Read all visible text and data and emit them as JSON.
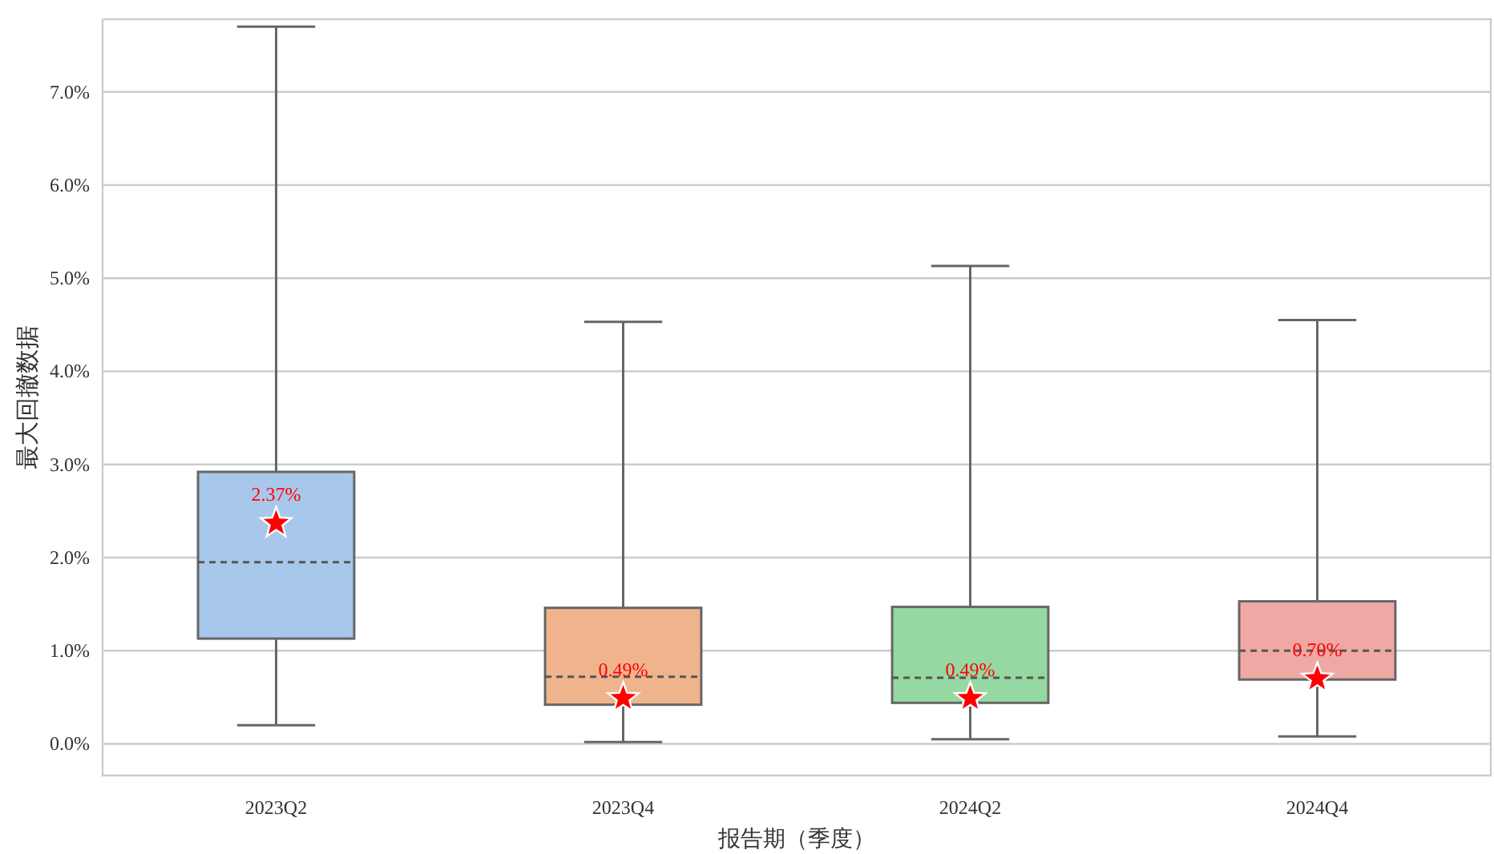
{
  "chart_data": {
    "type": "box",
    "xlabel": "报告期（季度）",
    "ylabel": "最大回撤数据",
    "categories": [
      "2023Q2",
      "2023Q4",
      "2024Q2",
      "2024Q4"
    ],
    "colors": [
      "#a8c8eb",
      "#f0b48c",
      "#96d8a2",
      "#f0a8a4"
    ],
    "boxes": [
      {
        "low": 0.2,
        "q1": 1.13,
        "median": 1.95,
        "q3": 2.92,
        "high": 7.7
      },
      {
        "low": 0.02,
        "q1": 0.42,
        "median": 0.72,
        "q3": 1.46,
        "high": 4.53
      },
      {
        "low": 0.05,
        "q1": 0.44,
        "median": 0.71,
        "q3": 1.47,
        "high": 5.13
      },
      {
        "low": 0.08,
        "q1": 0.69,
        "median": 1.0,
        "q3": 1.53,
        "high": 4.55
      }
    ],
    "series": [
      {
        "type": "scatter",
        "marker": "star",
        "color": "#ff0000",
        "x": [
          "2023Q2",
          "2023Q4",
          "2024Q2",
          "2024Q4"
        ],
        "values": [
          2.37,
          0.49,
          0.49,
          0.7
        ],
        "value_labels": [
          "2.37%",
          "0.49%",
          "0.49%",
          "0.70%"
        ]
      }
    ],
    "ylim": [
      -0.34,
      7.78
    ],
    "yticks": [
      {
        "value": 0,
        "label": "0.0%"
      },
      {
        "value": 1,
        "label": "1.0%"
      },
      {
        "value": 2,
        "label": "2.0%"
      },
      {
        "value": 3,
        "label": "3.0%"
      },
      {
        "value": 4,
        "label": "4.0%"
      },
      {
        "value": 5,
        "label": "5.0%"
      },
      {
        "value": 6,
        "label": "6.0%"
      },
      {
        "value": 7,
        "label": "7.0%"
      }
    ],
    "grid": "y"
  }
}
